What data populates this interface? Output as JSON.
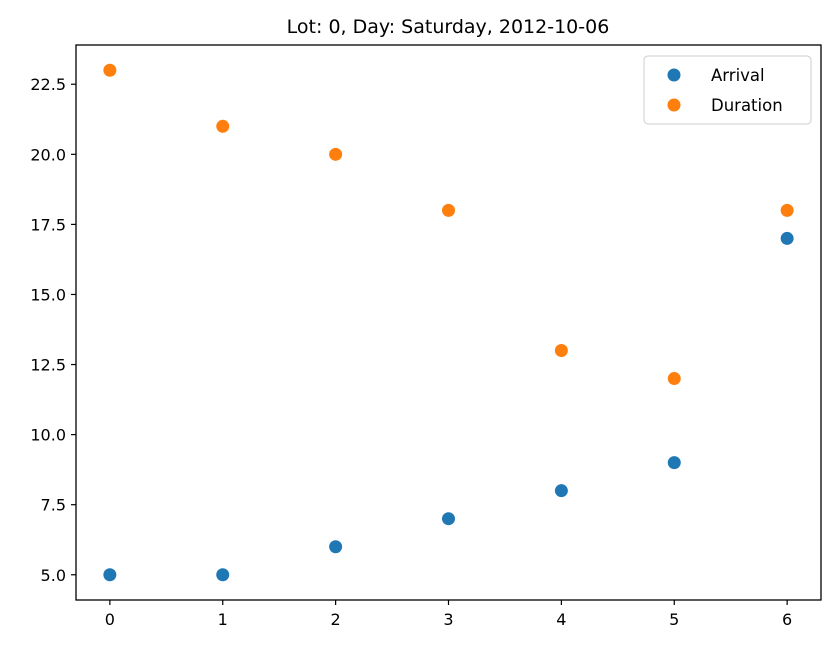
{
  "chart_data": {
    "type": "scatter",
    "title": "Lot: 0, Day: Saturday, 2012-10-06",
    "xlabel": "",
    "ylabel": "",
    "x": [
      0,
      1,
      2,
      3,
      4,
      5,
      6
    ],
    "xlim": [
      -0.3,
      6.3
    ],
    "ylim": [
      4.1,
      23.9
    ],
    "x_ticks": [
      "0",
      "1",
      "2",
      "3",
      "4",
      "5",
      "6"
    ],
    "y_ticks": [
      "5.0",
      "7.5",
      "10.0",
      "12.5",
      "15.0",
      "17.5",
      "20.0",
      "22.5"
    ],
    "grid": false,
    "legend_position": "top-right",
    "series": [
      {
        "name": "Arrival",
        "color": "#1f77b4",
        "values": [
          5,
          5,
          6,
          7,
          8,
          9,
          17
        ]
      },
      {
        "name": "Duration",
        "color": "#ff7f0e",
        "values": [
          23,
          21,
          20,
          18,
          13,
          12,
          18
        ]
      }
    ]
  }
}
